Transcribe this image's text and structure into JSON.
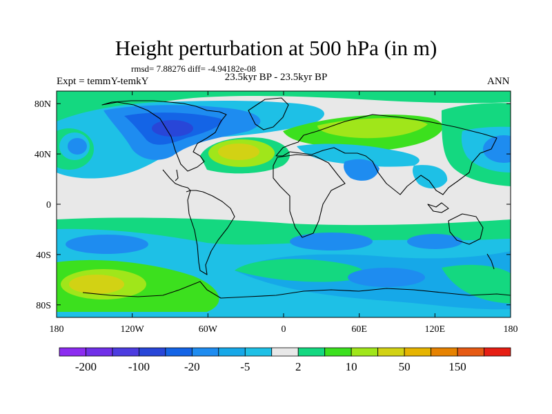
{
  "title": "Height perturbation at 500 hPa (in m)",
  "stats": "rmsd= 7.88276 diff= -4.94182e-08",
  "period": "23.5kyr BP - 23.5kyr BP",
  "experiment": "Expt = temmY-temkY",
  "season": "ANN",
  "map": {
    "lon_ticks": [
      {
        "label": "180",
        "lon": -180
      },
      {
        "label": "120W",
        "lon": -120
      },
      {
        "label": "60W",
        "lon": -60
      },
      {
        "label": "0",
        "lon": 0
      },
      {
        "label": "60E",
        "lon": 60
      },
      {
        "label": "120E",
        "lon": 120
      },
      {
        "label": "180",
        "lon": 180
      }
    ],
    "lat_ticks": [
      {
        "label": "80N",
        "lat": 80
      },
      {
        "label": "40N",
        "lat": 40
      },
      {
        "label": "0",
        "lat": 0
      },
      {
        "label": "40S",
        "lat": -40
      },
      {
        "label": "80S",
        "lat": -80
      }
    ],
    "lon_range": [
      -180,
      180
    ],
    "lat_range": [
      -90,
      90
    ]
  },
  "colorbar": {
    "colors": [
      "#8c2cf0",
      "#7030e8",
      "#4c3ce0",
      "#2846d8",
      "#1464e6",
      "#1e8cf0",
      "#16a8e8",
      "#1ec0e6",
      "#e8e8e8",
      "#14d880",
      "#3ce01e",
      "#a0e61a",
      "#d2d214",
      "#e6b400",
      "#e68200",
      "#e65a14",
      "#e61e14"
    ],
    "labels": [
      {
        "text": "-200",
        "boundary": 1
      },
      {
        "text": "-100",
        "boundary": 3
      },
      {
        "text": "-20",
        "boundary": 5
      },
      {
        "text": "-5",
        "boundary": 7
      },
      {
        "text": "2",
        "boundary": 9
      },
      {
        "text": "10",
        "boundary": 11
      },
      {
        "text": "50",
        "boundary": 13
      },
      {
        "text": "150",
        "boundary": 15
      }
    ]
  },
  "field_bands": {
    "grey": "#e8e8e8",
    "light_blue": "#1ec0e6",
    "blue": "#16a8e8",
    "mid_blue": "#1e8cf0",
    "deep_blue": "#1464e6",
    "navy": "#2846d8",
    "green": "#14d880",
    "lime": "#3ce01e",
    "yellow_green": "#a0e61a",
    "yellow": "#d2d214",
    "gold": "#e6b400"
  }
}
